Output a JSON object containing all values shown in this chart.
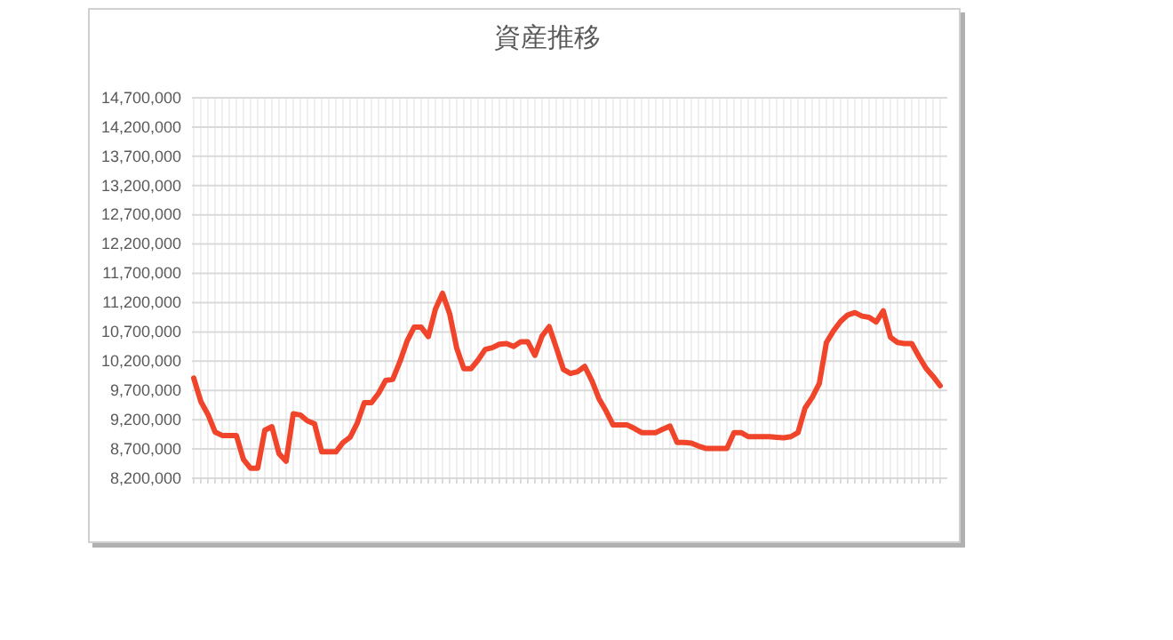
{
  "chart_data": {
    "type": "line",
    "title": "資産推移",
    "categories": [
      null,
      null,
      null,
      null,
      null,
      null,
      null,
      null,
      null,
      null,
      null,
      null,
      null,
      null,
      null,
      null,
      null,
      null,
      null,
      null,
      null,
      null,
      null,
      null,
      null,
      null,
      null,
      null,
      null,
      null,
      null,
      null,
      null,
      null,
      null,
      null,
      null,
      null,
      null,
      null,
      null,
      null,
      null,
      null,
      null,
      null,
      null,
      null,
      null,
      null,
      null,
      null,
      null,
      null,
      null,
      null,
      null,
      null,
      null,
      null,
      null,
      null,
      null,
      null,
      null,
      null,
      null,
      null,
      null,
      null,
      null,
      null,
      null,
      null,
      null,
      null,
      null,
      null,
      null,
      null,
      null,
      null,
      null,
      null,
      null,
      null,
      null,
      null,
      null,
      null,
      null,
      null,
      null,
      null,
      null,
      null,
      null,
      null,
      null,
      null,
      null,
      null,
      null,
      null,
      null,
      null
    ],
    "series": [
      {
        "color": "#f0452a",
        "values": [
          9910000,
          9510000,
          9290000,
          8990000,
          8930000,
          8930000,
          8930000,
          8520000,
          8370000,
          8370000,
          9020000,
          9080000,
          8620000,
          8490000,
          9300000,
          9280000,
          9180000,
          9130000,
          8650000,
          8650000,
          8650000,
          8810000,
          8900000,
          9140000,
          9490000,
          9490000,
          9650000,
          9870000,
          9890000,
          10190000,
          10540000,
          10780000,
          10780000,
          10620000,
          11090000,
          11360000,
          11010000,
          10420000,
          10070000,
          10070000,
          10220000,
          10400000,
          10430000,
          10490000,
          10500000,
          10450000,
          10530000,
          10530000,
          10300000,
          10630000,
          10790000,
          10430000,
          10060000,
          9990000,
          10020000,
          10110000,
          9870000,
          9560000,
          9350000,
          9110000,
          9110000,
          9110000,
          9050000,
          8980000,
          8980000,
          8980000,
          9040000,
          9090000,
          8810000,
          8810000,
          8800000,
          8750000,
          8710000,
          8710000,
          8710000,
          8710000,
          8980000,
          8980000,
          8910000,
          8910000,
          8910000,
          8910000,
          8900000,
          8890000,
          8910000,
          8980000,
          9400000,
          9580000,
          9820000,
          10520000,
          10720000,
          10880000,
          10990000,
          11030000,
          10970000,
          10950000,
          10870000,
          11060000,
          10610000,
          10520000,
          10500000,
          10500000,
          10280000,
          10080000,
          9940000,
          9780000
        ]
      }
    ],
    "ylim": [
      8200000,
      14700000
    ],
    "yticks": [
      {
        "value": 8200000,
        "label": "8,200,000"
      },
      {
        "value": 8700000,
        "label": "8,700,000"
      },
      {
        "value": 9200000,
        "label": "9,200,000"
      },
      {
        "value": 9700000,
        "label": "9,700,000"
      },
      {
        "value": 10200000,
        "label": "10,200,000"
      },
      {
        "value": 10700000,
        "label": "10,700,000"
      },
      {
        "value": 11200000,
        "label": "11,200,000"
      },
      {
        "value": 11700000,
        "label": "11,700,000"
      },
      {
        "value": 12200000,
        "label": "12,200,000"
      },
      {
        "value": 12700000,
        "label": "12,700,000"
      },
      {
        "value": 13200000,
        "label": "13,200,000"
      },
      {
        "value": 13700000,
        "label": "13,700,000"
      },
      {
        "value": 14200000,
        "label": "14,200,000"
      },
      {
        "value": 14700000,
        "label": "14,700,000"
      }
    ],
    "grid": true,
    "marker": "none",
    "line_style": "solid"
  }
}
